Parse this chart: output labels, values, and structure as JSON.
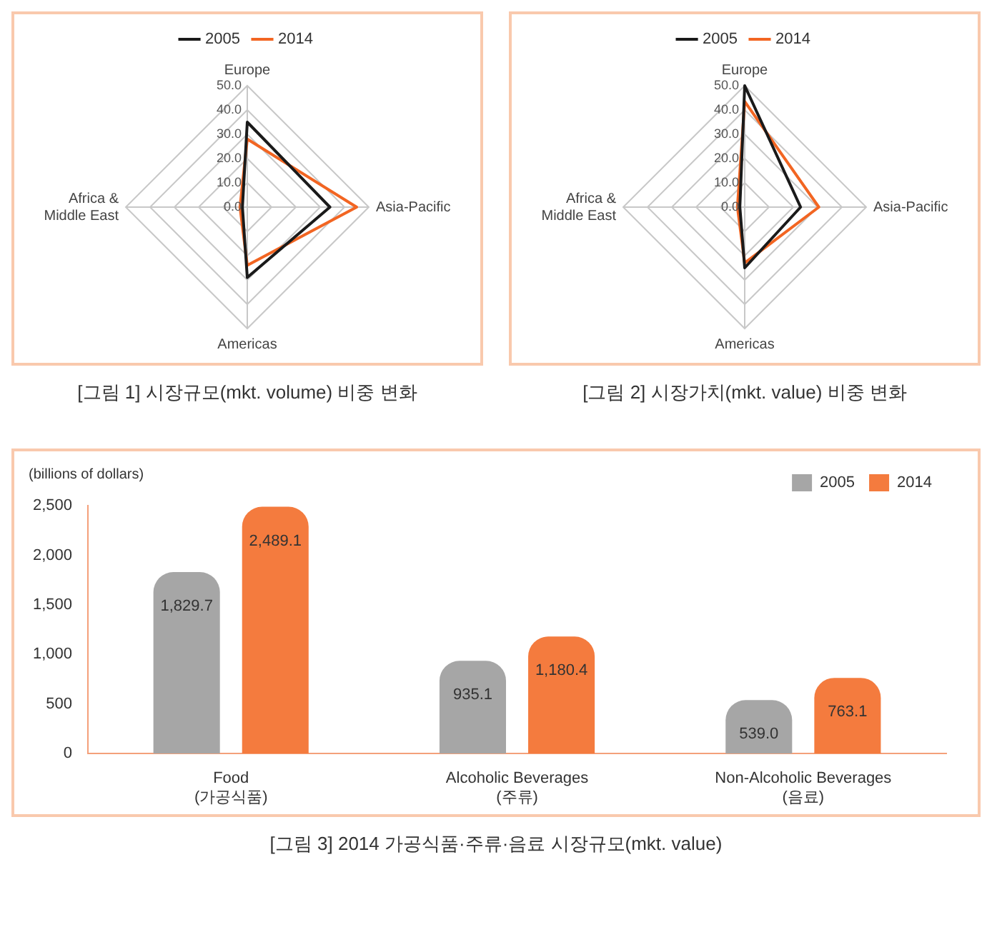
{
  "chart_data": [
    {
      "type": "radar",
      "title": "[그림 1] 시장규모(mkt. volume) 비중 변화",
      "categories": [
        "Europe",
        "Asia-Pacific",
        "Americas",
        "Africa &\nMiddle East"
      ],
      "series": [
        {
          "name": "2005",
          "color": "#1a1a1a",
          "values": [
            35,
            34,
            29,
            2
          ]
        },
        {
          "name": "2014",
          "color": "#f26522",
          "values": [
            28,
            45,
            24,
            3
          ]
        }
      ],
      "ylim": [
        0,
        50
      ],
      "yticks": [
        {
          "value": 0,
          "label": "0.0"
        },
        {
          "value": 10,
          "label": "10.0"
        },
        {
          "value": 20,
          "label": "20.0"
        },
        {
          "value": 30,
          "label": "30.0"
        },
        {
          "value": 40,
          "label": "40.0"
        },
        {
          "value": 50,
          "label": "50.0"
        }
      ],
      "grid": true,
      "legend": "top",
      "marker": "none",
      "line_style": "solid"
    },
    {
      "type": "radar",
      "title": "[그림 2] 시장가치(mkt. value) 비중 변화",
      "categories": [
        "Europe",
        "Asia-Pacific",
        "Americas",
        "Africa &\nMiddle East"
      ],
      "series": [
        {
          "name": "2005",
          "color": "#1a1a1a",
          "values": [
            50,
            23,
            25,
            2
          ]
        },
        {
          "name": "2014",
          "color": "#f26522",
          "values": [
            43.5,
            30.5,
            23,
            3
          ]
        }
      ],
      "ylim": [
        0,
        50
      ],
      "yticks": [
        {
          "value": 0,
          "label": "0.0"
        },
        {
          "value": 10,
          "label": "10.0"
        },
        {
          "value": 20,
          "label": "20.0"
        },
        {
          "value": 30,
          "label": "30.0"
        },
        {
          "value": 40,
          "label": "40.0"
        },
        {
          "value": 50,
          "label": "50.0"
        }
      ],
      "grid": true,
      "legend": "top",
      "marker": "none",
      "line_style": "solid"
    },
    {
      "type": "bar",
      "title": "[그림 3] 2014 가공식품·주류·음료 시장규모(mkt. value)",
      "ylabel": "(billions of dollars)",
      "categories": [
        "Food\n(가공식품)",
        "Alcoholic Beverages\n(주류)",
        "Non-Alcoholic Beverages\n(음료)"
      ],
      "series": [
        {
          "name": "2005",
          "color": "#a6a6a6",
          "values": [
            1829.7,
            935.1,
            539.0
          ],
          "value_labels": [
            "1,829.7",
            "935.1",
            "539.0"
          ]
        },
        {
          "name": "2014",
          "color": "#f47b3e",
          "values": [
            2489.1,
            1180.4,
            763.1
          ],
          "value_labels": [
            "2,489.1",
            "1,180.4",
            "763.1"
          ]
        }
      ],
      "ylim": [
        0,
        2500
      ],
      "yticks": [
        0,
        500,
        {
          "value": 1000,
          "label": "1,000"
        },
        {
          "value": 1500,
          "label": "1,500"
        },
        {
          "value": 2000,
          "label": "2,000"
        },
        {
          "value": 2500,
          "label": "2,500"
        }
      ],
      "grid": false,
      "legend": "top right"
    }
  ]
}
